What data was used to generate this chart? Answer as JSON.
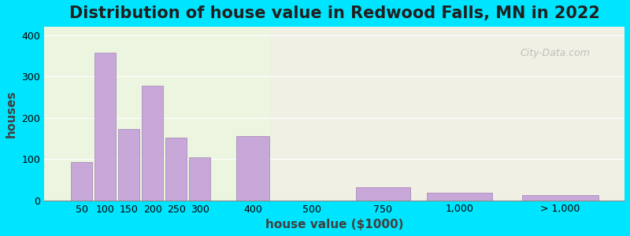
{
  "title": "Distribution of house value in Redwood Falls, MN in 2022",
  "xlabel": "house value ($1000)",
  "ylabel": "houses",
  "bar_color": "#c8a8d8",
  "bar_edge_color": "#a080b8",
  "background_outer": "#00e5ff",
  "background_inner_left": "#e8f5e0",
  "background_inner_right": "#f5f0f0",
  "ylim": [
    0,
    420
  ],
  "yticks": [
    0,
    100,
    200,
    300,
    400
  ],
  "categories": [
    "50",
    "100",
    "150",
    "200",
    "250",
    "300",
    "400",
    "500",
    "750",
    "1,000",
    "> 1,000"
  ],
  "values": [
    92,
    358,
    172,
    278,
    152,
    104,
    155,
    0,
    32,
    18,
    12
  ],
  "bar_widths": [
    1,
    1,
    1,
    1,
    1,
    1,
    1,
    1,
    1,
    1,
    1
  ],
  "title_fontsize": 15,
  "axis_label_fontsize": 11,
  "tick_fontsize": 9
}
